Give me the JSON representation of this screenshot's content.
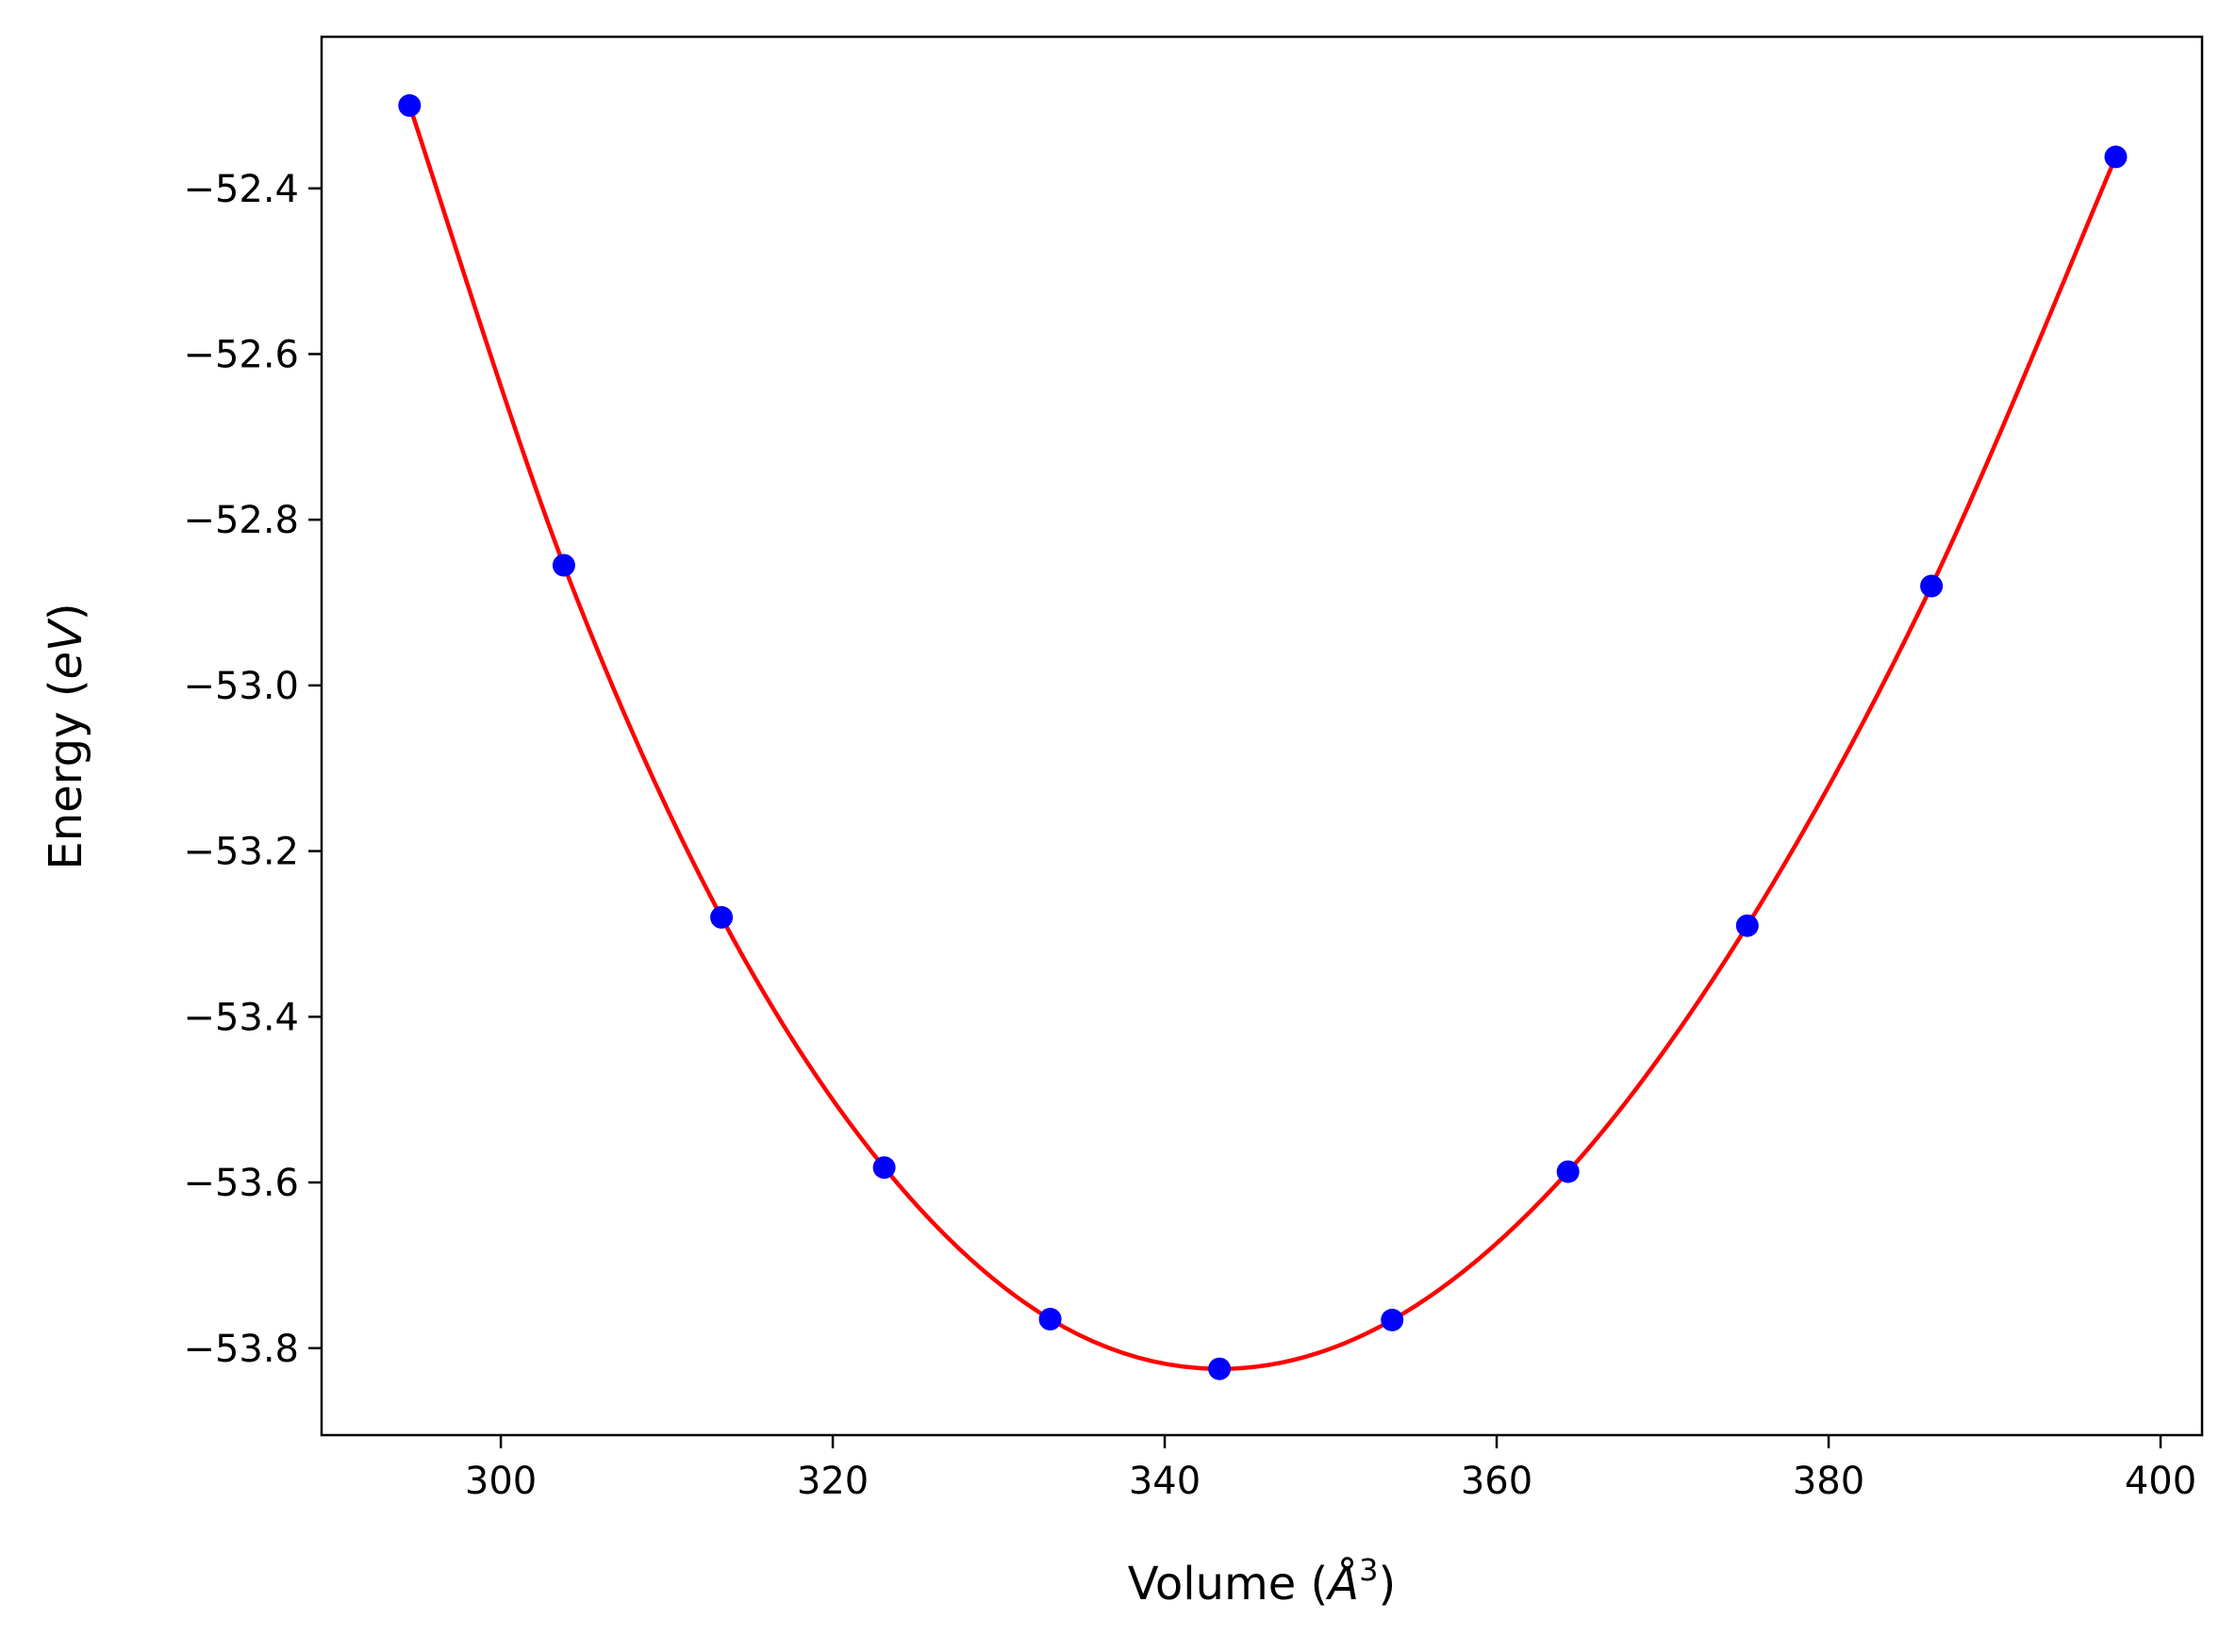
{
  "chart_data": {
    "type": "scatter",
    "xlabel_prefix": "Volume (",
    "xlabel_symbol": "Å",
    "xlabel_exponent": "3",
    "xlabel_suffix": ")",
    "ylabel_prefix": "Energy (",
    "ylabel_symbol": "eV",
    "ylabel_suffix": ")",
    "xlim": [
      289.2,
      402.5
    ],
    "ylim": [
      -53.905,
      -52.217
    ],
    "xticks": [
      300,
      320,
      340,
      360,
      380,
      400
    ],
    "xtick_labels": [
      "300",
      "320",
      "340",
      "360",
      "380",
      "400"
    ],
    "yticks": [
      -52.4,
      -52.6,
      -52.8,
      -53.0,
      -53.2,
      -53.4,
      -53.6,
      -53.8
    ],
    "ytick_labels": [
      "−52.4",
      "−52.6",
      "−52.8",
      "−53.0",
      "−53.2",
      "−53.4",
      "−53.6",
      "−53.8"
    ],
    "grid": false,
    "series": [
      {
        "kind": "points",
        "color": "#0000ff",
        "x": [
          294.5,
          303.8,
          313.3,
          323.1,
          333.1,
          343.3,
          353.7,
          364.3,
          375.1,
          386.2,
          397.3
        ],
        "y": [
          -52.3,
          -52.855,
          -53.28,
          -53.582,
          -53.765,
          -53.825,
          -53.766,
          -53.587,
          -53.29,
          -52.88,
          -52.362
        ]
      },
      {
        "kind": "fit_curve",
        "color": "#ff0000",
        "x": [
          294.5,
          303.8,
          313.3,
          323.1,
          333.1,
          343.3,
          353.7,
          364.3,
          375.1,
          386.2,
          397.3
        ],
        "y": [
          -52.3,
          -52.855,
          -53.28,
          -53.582,
          -53.765,
          -53.825,
          -53.766,
          -53.587,
          -53.29,
          -52.88,
          -52.362
        ]
      }
    ]
  }
}
